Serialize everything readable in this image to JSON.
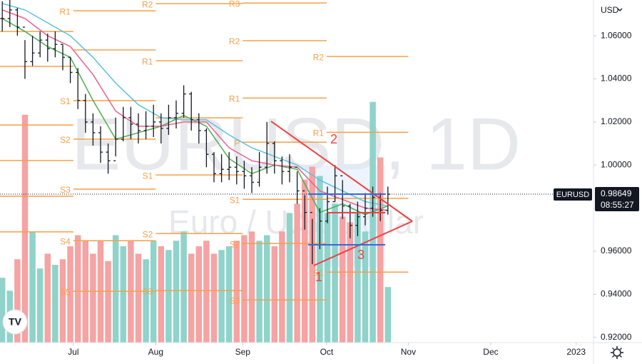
{
  "chart_data": {
    "type": "ohlc",
    "symbol": "EURUSD, 1D",
    "description": "Euro / U.S. Dollar",
    "currency": "USD",
    "price_tag": "EURUSD",
    "countdown": "08:55:27",
    "last_price": 0.98649,
    "xlim": [
      -0.3,
      78.0
    ],
    "xticks": [
      {
        "value": 9.4,
        "label": "Jul"
      },
      {
        "value": 20.3,
        "label": "Aug"
      },
      {
        "value": 31.8,
        "label": "Sep"
      },
      {
        "value": 42.9,
        "label": "Oct"
      },
      {
        "value": 53.7,
        "label": "Nov"
      },
      {
        "value": 64.6,
        "label": "Dec"
      },
      {
        "value": 75.9,
        "label": "2023"
      }
    ],
    "ylim": [
      0.9176,
      1.0766
    ],
    "yticks": [
      {
        "value": 1.06,
        "label": "1.06000"
      },
      {
        "value": 1.04,
        "label": "1.04000"
      },
      {
        "value": 1.02,
        "label": "1.02000"
      },
      {
        "value": 1.0,
        "label": "1.00000"
      },
      {
        "value": 0.96,
        "label": "0.96000"
      },
      {
        "value": 0.94,
        "label": "0.94000"
      },
      {
        "value": 0.92,
        "label": "0.92000"
      }
    ],
    "bar_color": "#131722",
    "bars": [
      {
        "h": 1.076,
        "l": 1.062,
        "c": 1.068
      },
      {
        "h": 1.077,
        "l": 1.064,
        "c": 1.072
      },
      {
        "h": 1.073,
        "l": 1.06,
        "c": 1.064
      },
      {
        "h": 1.058,
        "l": 1.04,
        "c": 1.048
      },
      {
        "h": 1.06,
        "l": 1.046,
        "c": 1.052
      },
      {
        "h": 1.062,
        "l": 1.05,
        "c": 1.058
      },
      {
        "h": 1.061,
        "l": 1.048,
        "c": 1.054
      },
      {
        "h": 1.062,
        "l": 1.05,
        "c": 1.056
      },
      {
        "h": 1.056,
        "l": 1.044,
        "c": 1.05
      },
      {
        "h": 1.05,
        "l": 1.038,
        "c": 1.043
      },
      {
        "h": 1.045,
        "l": 1.026,
        "c": 1.03
      },
      {
        "h": 1.033,
        "l": 1.015,
        "c": 1.02
      },
      {
        "h": 1.024,
        "l": 1.009,
        "c": 1.015
      },
      {
        "h": 1.018,
        "l": 1.001,
        "c": 1.006
      },
      {
        "h": 1.01,
        "l": 0.996,
        "c": 1.002
      },
      {
        "h": 1.022,
        "l": 1.004,
        "c": 1.012
      },
      {
        "h": 1.027,
        "l": 1.011,
        "c": 1.022
      },
      {
        "h": 1.027,
        "l": 1.012,
        "c": 1.019
      },
      {
        "h": 1.024,
        "l": 1.01,
        "c": 1.016
      },
      {
        "h": 1.025,
        "l": 1.012,
        "c": 1.018
      },
      {
        "h": 1.028,
        "l": 1.013,
        "c": 1.02
      },
      {
        "h": 1.024,
        "l": 1.01,
        "c": 1.017
      },
      {
        "h": 1.028,
        "l": 1.014,
        "c": 1.022
      },
      {
        "h": 1.03,
        "l": 1.017,
        "c": 1.024
      },
      {
        "h": 1.037,
        "l": 1.022,
        "c": 1.033
      },
      {
        "h": 1.034,
        "l": 1.016,
        "c": 1.021
      },
      {
        "h": 1.024,
        "l": 1.01,
        "c": 1.016
      },
      {
        "h": 1.017,
        "l": 0.999,
        "c": 1.005
      },
      {
        "h": 1.006,
        "l": 0.992,
        "c": 0.996
      },
      {
        "h": 1.005,
        "l": 0.992,
        "c": 0.998
      },
      {
        "h": 1.006,
        "l": 0.993,
        "c": 0.999
      },
      {
        "h": 1.004,
        "l": 0.991,
        "c": 0.997
      },
      {
        "h": 1.002,
        "l": 0.989,
        "c": 0.995
      },
      {
        "h": 0.999,
        "l": 0.987,
        "c": 0.992
      },
      {
        "h": 1.006,
        "l": 0.99,
        "c": 0.999
      },
      {
        "h": 1.02,
        "l": 0.996,
        "c": 1.01
      },
      {
        "h": 1.011,
        "l": 0.996,
        "c": 1.002
      },
      {
        "h": 1.004,
        "l": 0.991,
        "c": 0.997
      },
      {
        "h": 1.005,
        "l": 0.992,
        "c": 0.999
      },
      {
        "h": 0.997,
        "l": 0.982,
        "c": 0.988
      },
      {
        "h": 0.986,
        "l": 0.97,
        "c": 0.978
      },
      {
        "h": 0.975,
        "l": 0.954,
        "c": 0.963
      },
      {
        "h": 0.98,
        "l": 0.961,
        "c": 0.974
      },
      {
        "h": 0.99,
        "l": 0.973,
        "c": 0.983
      },
      {
        "h": 1.0,
        "l": 0.983,
        "c": 0.995
      },
      {
        "h": 0.993,
        "l": 0.975,
        "c": 0.981
      },
      {
        "h": 0.982,
        "l": 0.966,
        "c": 0.972
      },
      {
        "h": 0.983,
        "l": 0.967,
        "c": 0.976
      },
      {
        "h": 0.987,
        "l": 0.972,
        "c": 0.98
      },
      {
        "h": 0.99,
        "l": 0.976,
        "c": 0.985
      },
      {
        "h": 0.987,
        "l": 0.974,
        "c": 0.979
      },
      {
        "h": 0.99,
        "l": 0.977,
        "c": 0.98649
      }
    ],
    "volume_lim": [
      0,
      185
    ],
    "volume_colors": {
      "up": "#8fd3ca",
      "down": "#f5a3a3"
    },
    "volumes": [
      35,
      28,
      45,
      123,
      60,
      40,
      48,
      42,
      45,
      52,
      58,
      55,
      48,
      55,
      44,
      58,
      52,
      55,
      48,
      45,
      55,
      52,
      50,
      55,
      60,
      48,
      52,
      55,
      48,
      50,
      52,
      55,
      58,
      60,
      55,
      58,
      52,
      60,
      70,
      75,
      88,
      95,
      90,
      70,
      75,
      68,
      65,
      70,
      60,
      130,
      100,
      30
    ],
    "moving_averages": [
      {
        "color": "#4caf50",
        "x": [
          0,
          3,
          6,
          9,
          12,
          15,
          18,
          21,
          24,
          27,
          30,
          33,
          36,
          39,
          42,
          45,
          48,
          51
        ],
        "values": [
          1.068,
          1.062,
          1.055,
          1.05,
          1.03,
          1.012,
          1.015,
          1.018,
          1.023,
          1.018,
          1.003,
          0.996,
          1.0,
          0.998,
          0.978,
          0.982,
          0.977,
          0.981
        ]
      },
      {
        "color": "#ec5f8c",
        "x": [
          0,
          3,
          6,
          9,
          12,
          15,
          18,
          21,
          24,
          27,
          30,
          33,
          36,
          39,
          42,
          45,
          48,
          51
        ],
        "values": [
          1.072,
          1.068,
          1.06,
          1.055,
          1.042,
          1.025,
          1.018,
          1.018,
          1.02,
          1.02,
          1.008,
          1.002,
          1.0,
          0.999,
          0.988,
          0.984,
          0.98,
          0.979
        ]
      },
      {
        "color": "#5bc0de",
        "x": [
          0,
          3,
          6,
          9,
          12,
          15,
          18,
          21,
          24,
          27,
          30,
          33,
          36,
          39,
          42,
          45,
          48,
          51
        ],
        "values": [
          1.075,
          1.072,
          1.066,
          1.06,
          1.05,
          1.038,
          1.028,
          1.022,
          1.021,
          1.021,
          1.014,
          1.008,
          1.004,
          1.0,
          0.993,
          0.988,
          0.983,
          0.981
        ]
      }
    ],
    "pivot_color": "#f5a04a",
    "pivots": [
      {
        "label": null,
        "value": 1.062,
        "from": -0.3,
        "to": 9.4
      },
      {
        "label": null,
        "value": 1.0458,
        "from": -0.3,
        "to": 9.4
      },
      {
        "label": null,
        "value": 1.0186,
        "from": -0.3,
        "to": 9.4
      },
      {
        "label": null,
        "value": 1.0021,
        "from": -0.3,
        "to": 9.4
      },
      {
        "label": null,
        "value": 0.9855,
        "from": -0.3,
        "to": 9.4
      },
      {
        "label": null,
        "value": 0.969,
        "from": -0.3,
        "to": 9.4
      },
      {
        "label": "R1",
        "value": 1.0716,
        "from": 9.4,
        "to": 20.3
      },
      {
        "label": null,
        "value": 1.0534,
        "from": 9.4,
        "to": 20.3
      },
      {
        "label": "S1",
        "value": 1.0299,
        "from": 9.4,
        "to": 20.3
      },
      {
        "label": "S2",
        "value": 1.012,
        "from": 9.4,
        "to": 20.3
      },
      {
        "label": "S3",
        "value": 0.9888,
        "from": 9.4,
        "to": 20.3
      },
      {
        "label": "S4",
        "value": 0.9649,
        "from": 9.4,
        "to": 20.3
      },
      {
        "label": "S5",
        "value": 0.9414,
        "from": 9.4,
        "to": 20.3
      },
      {
        "label": "R2",
        "value": 1.0749,
        "from": 20.3,
        "to": 31.8
      },
      {
        "label": "R1",
        "value": 1.0484,
        "from": 20.3,
        "to": 31.8
      },
      {
        "label": null,
        "value": 1.0219,
        "from": 20.3,
        "to": 31.8
      },
      {
        "label": "S1",
        "value": 0.9954,
        "from": 20.3,
        "to": 31.8
      },
      {
        "label": "S2",
        "value": 0.9682,
        "from": 20.3,
        "to": 31.8
      },
      {
        "label": "S3",
        "value": 0.9417,
        "from": 20.3,
        "to": 31.8
      },
      {
        "label": "R3",
        "value": 1.0752,
        "from": 31.8,
        "to": 42.9
      },
      {
        "label": "R2",
        "value": 1.0577,
        "from": 31.8,
        "to": 42.9
      },
      {
        "label": "R1",
        "value": 1.0311,
        "from": 31.8,
        "to": 42.9
      },
      {
        "label": "P",
        "value": 1.0106,
        "from": 31.8,
        "to": 42.9
      },
      {
        "label": "S1",
        "value": 0.9841,
        "from": 31.8,
        "to": 42.9
      },
      {
        "label": "S2",
        "value": 0.9636,
        "from": 31.8,
        "to": 42.9
      },
      {
        "label": "S3",
        "value": 0.9374,
        "from": 31.8,
        "to": 42.9
      },
      {
        "label": "R2",
        "value": 1.0504,
        "from": 42.9,
        "to": 53.7
      },
      {
        "label": "R1",
        "value": 1.0152,
        "from": 42.9,
        "to": 53.7
      },
      {
        "label": null,
        "value": 0.9845,
        "from": 42.9,
        "to": 53.7
      },
      {
        "label": "S1",
        "value": 0.9503,
        "from": 42.9,
        "to": 53.7
      }
    ],
    "annotations": [
      "1",
      "2",
      "3"
    ]
  }
}
